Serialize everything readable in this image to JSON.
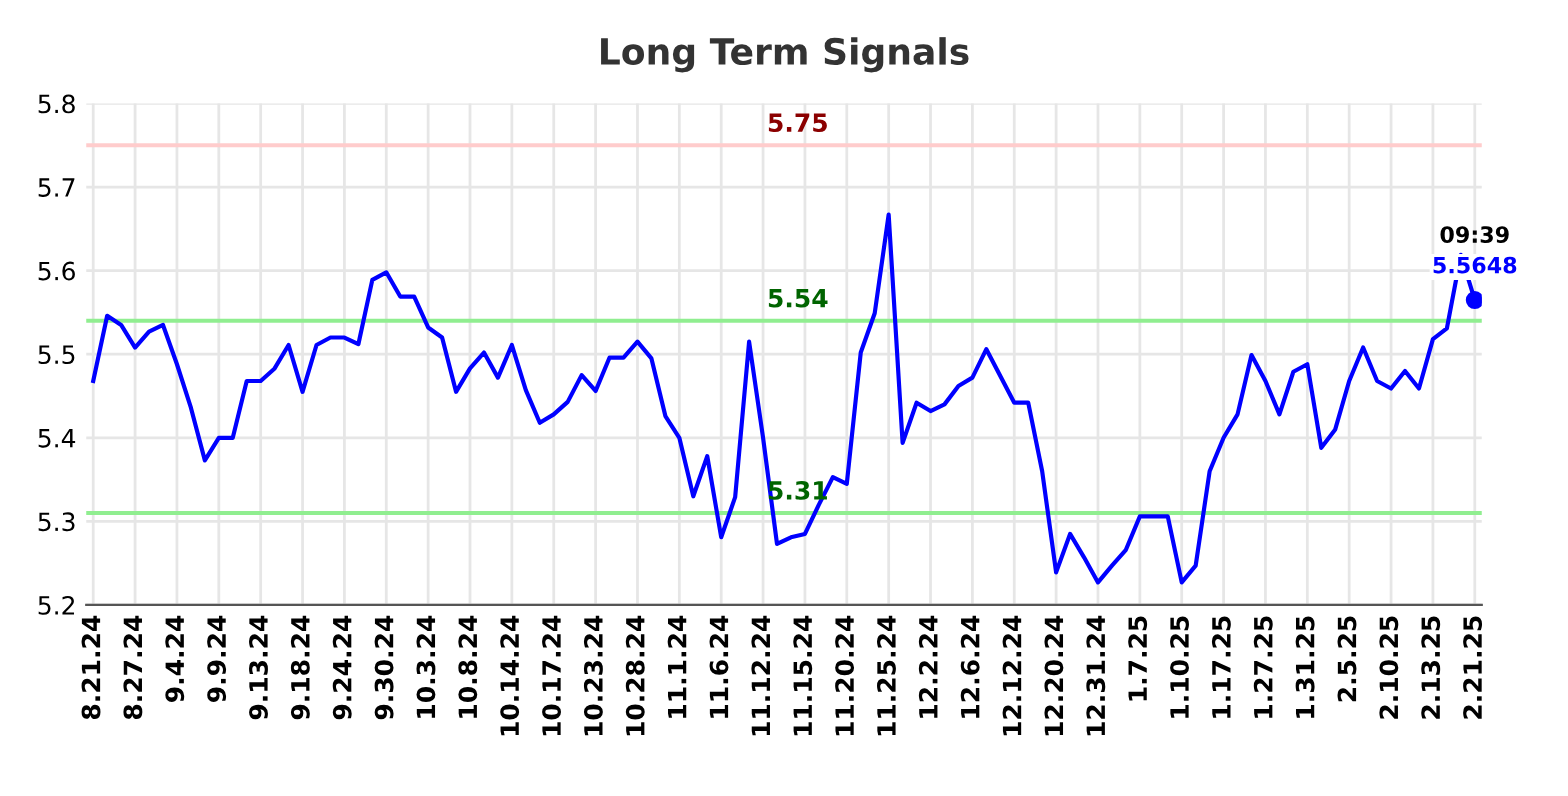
{
  "chart_data": {
    "type": "line",
    "title": "Long Term Signals",
    "categories": [
      "8.21.24",
      null,
      null,
      "8.27.24",
      null,
      null,
      "9.4.24",
      null,
      null,
      "9.9.24",
      null,
      null,
      "9.13.24",
      null,
      null,
      "9.18.24",
      null,
      null,
      "9.24.24",
      null,
      null,
      "9.30.24",
      null,
      null,
      "10.3.24",
      null,
      null,
      "10.8.24",
      null,
      null,
      "10.14.24",
      null,
      null,
      "10.17.24",
      null,
      null,
      "10.23.24",
      null,
      null,
      "10.28.24",
      null,
      null,
      "11.1.24",
      null,
      null,
      "11.6.24",
      null,
      null,
      "11.12.24",
      null,
      null,
      "11.15.24",
      null,
      null,
      "11.20.24",
      null,
      null,
      "11.25.24",
      null,
      null,
      "12.2.24",
      null,
      null,
      "12.6.24",
      null,
      null,
      "12.12.24",
      null,
      null,
      "12.20.24",
      null,
      null,
      "12.31.24",
      null,
      null,
      "1.7.25",
      null,
      null,
      "1.10.25",
      null,
      null,
      "1.17.25",
      null,
      null,
      "1.27.25",
      null,
      null,
      "1.31.25",
      null,
      null,
      "2.5.25",
      null,
      null,
      "2.10.25",
      null,
      null,
      "2.13.25",
      null,
      null,
      "2.21.25"
    ],
    "series": [
      {
        "color": "#0000ff",
        "values": [
          5.468,
          5.546,
          5.535,
          5.508,
          5.527,
          5.535,
          5.488,
          5.436,
          5.373,
          5.4,
          5.4,
          5.468,
          5.468,
          5.483,
          5.511,
          5.455,
          5.511,
          5.52,
          5.52,
          5.512,
          5.589,
          5.598,
          5.569,
          5.569,
          5.532,
          5.52,
          5.455,
          5.483,
          5.502,
          5.472,
          5.511,
          5.457,
          5.418,
          5.428,
          5.443,
          5.475,
          5.456,
          5.496,
          5.496,
          5.515,
          5.495,
          5.426,
          5.4,
          5.33,
          5.378,
          5.281,
          5.329,
          5.515,
          5.4,
          5.273,
          5.281,
          5.285,
          5.32,
          5.353,
          5.345,
          5.502,
          5.549,
          5.667,
          5.394,
          5.442,
          5.432,
          5.44,
          5.462,
          5.472,
          5.506,
          5.474,
          5.442,
          5.442,
          5.36,
          5.239,
          5.285,
          5.257,
          5.227,
          5.247,
          5.266,
          5.306,
          5.306,
          5.306,
          5.227,
          5.247,
          5.36,
          5.4,
          5.428,
          5.499,
          5.468,
          5.428,
          5.479,
          5.488,
          5.388,
          5.41,
          5.468,
          5.508,
          5.468,
          5.459,
          5.48,
          5.459,
          5.518,
          5.531,
          5.619,
          5.565
        ]
      },
      {
        "type": "scatter",
        "color": "#0000ff",
        "x": [
          "2.21.25"
        ],
        "values": [
          5.5648
        ],
        "value_labels": [
          "5.5648"
        ]
      }
    ],
    "ref_lines": [
      {
        "axis": "y",
        "value": 5.75,
        "label": "5.75",
        "color": "#ffcccc"
      },
      {
        "axis": "y",
        "value": 5.54,
        "label": "5.54",
        "color": "#90ee90"
      },
      {
        "axis": "y",
        "value": 5.31,
        "label": "5.31",
        "color": "#90ee90"
      }
    ],
    "annotations": [
      {
        "text": "09:39",
        "x": "2.21.25",
        "y": 5.5648
      }
    ],
    "ylim": [
      5.2,
      5.8
    ],
    "yticks": [
      5.2,
      5.3,
      5.4,
      5.5,
      5.6,
      5.7,
      5.8
    ],
    "grid": true,
    "legend": false
  }
}
